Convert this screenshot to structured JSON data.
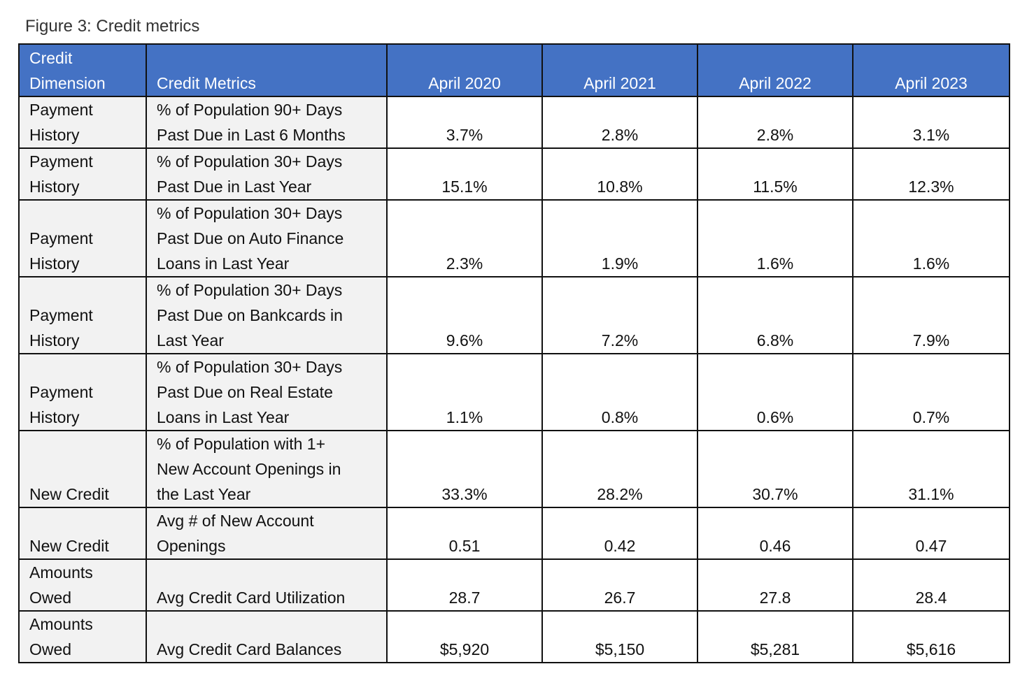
{
  "caption": "Figure 3: Credit metrics",
  "table": {
    "header": [
      [
        "Credit",
        "Dimension"
      ],
      [
        "Credit Metrics"
      ],
      [
        "April 2020"
      ],
      [
        "April 2021"
      ],
      [
        "April 2022"
      ],
      [
        "April 2023"
      ]
    ],
    "rows": [
      [
        [
          "Payment",
          "History"
        ],
        [
          "% of Population 90+ Days",
          "Past Due in Last 6 Months"
        ],
        "3.7%",
        "2.8%",
        "2.8%",
        "3.1%"
      ],
      [
        [
          "Payment",
          "History"
        ],
        [
          "% of Population 30+ Days",
          "Past Due in Last Year"
        ],
        "15.1%",
        "10.8%",
        "11.5%",
        "12.3%"
      ],
      [
        [
          "Payment",
          "History"
        ],
        [
          "% of Population 30+ Days",
          "Past Due on Auto Finance",
          "Loans in Last Year"
        ],
        "2.3%",
        "1.9%",
        "1.6%",
        "1.6%"
      ],
      [
        [
          "Payment",
          "History"
        ],
        [
          "% of Population 30+ Days",
          "Past Due on Bankcards in",
          "Last Year"
        ],
        "9.6%",
        "7.2%",
        "6.8%",
        "7.9%"
      ],
      [
        [
          "Payment",
          "History"
        ],
        [
          "% of Population 30+ Days",
          "Past Due on Real Estate",
          "Loans in Last Year"
        ],
        "1.1%",
        "0.8%",
        "0.6%",
        "0.7%"
      ],
      [
        [
          "New Credit"
        ],
        [
          "% of Population with 1+",
          "New Account Openings in",
          "the Last Year"
        ],
        "33.3%",
        "28.2%",
        "30.7%",
        "31.1%"
      ],
      [
        [
          "New Credit"
        ],
        [
          "Avg # of New Account",
          "Openings"
        ],
        "0.51",
        "0.42",
        "0.46",
        "0.47"
      ],
      [
        [
          "Amounts",
          "Owed"
        ],
        [
          "Avg Credit Card Utilization"
        ],
        "28.7",
        "26.7",
        "27.8",
        "28.4"
      ],
      [
        [
          "Amounts",
          "Owed"
        ],
        [
          "Avg Credit Card Balances"
        ],
        "$5,920",
        "$5,150",
        "$5,281",
        "$5,616"
      ]
    ]
  }
}
